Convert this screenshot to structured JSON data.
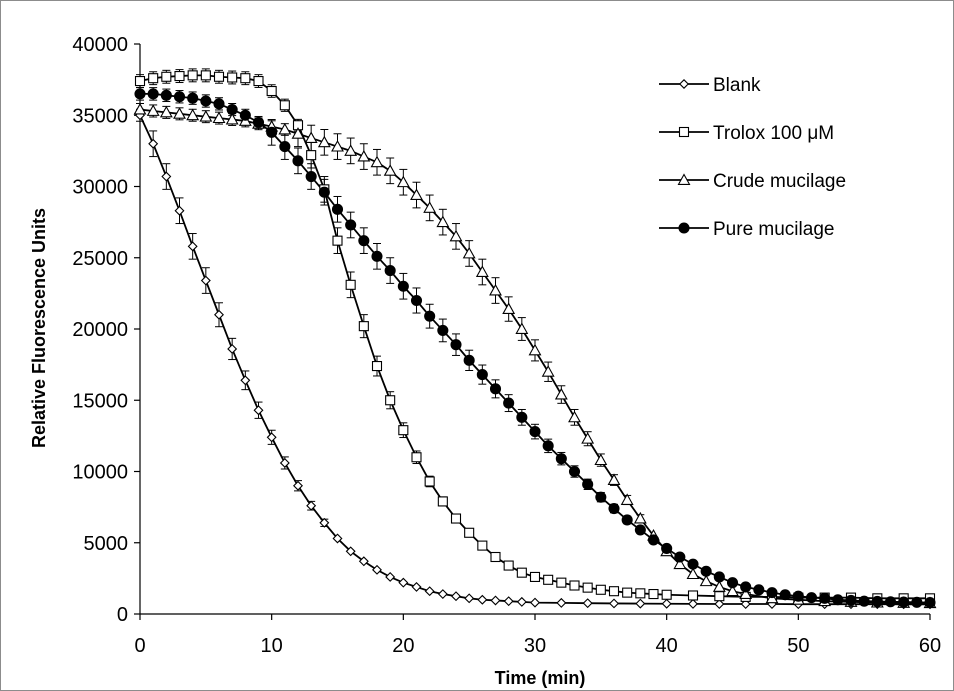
{
  "chart_data": {
    "type": "line",
    "title": "",
    "xlabel": "Time (min)",
    "ylabel": "Relative Fluorescence Units",
    "xlim": [
      0,
      60
    ],
    "ylim": [
      0,
      40000
    ],
    "xticks": [
      0,
      10,
      20,
      30,
      40,
      50,
      60
    ],
    "yticks": [
      0,
      5000,
      10000,
      15000,
      20000,
      25000,
      30000,
      35000,
      40000
    ],
    "grid": false,
    "legend_position": "top-right",
    "error_bars": true,
    "series": [
      {
        "name": "Blank",
        "marker": "diamond-open",
        "color": "#000000",
        "points": [
          [
            0,
            35000
          ],
          [
            1,
            33000
          ],
          [
            2,
            30700
          ],
          [
            3,
            28300
          ],
          [
            4,
            25800
          ],
          [
            5,
            23400
          ],
          [
            6,
            21000
          ],
          [
            7,
            18600
          ],
          [
            8,
            16400
          ],
          [
            9,
            14300
          ],
          [
            10,
            12400
          ],
          [
            11,
            10600
          ],
          [
            12,
            9000
          ],
          [
            13,
            7600
          ],
          [
            14,
            6400
          ],
          [
            15,
            5300
          ],
          [
            16,
            4400
          ],
          [
            17,
            3700
          ],
          [
            18,
            3100
          ],
          [
            19,
            2600
          ],
          [
            20,
            2200
          ],
          [
            21,
            1900
          ],
          [
            22,
            1600
          ],
          [
            23,
            1400
          ],
          [
            24,
            1250
          ],
          [
            25,
            1100
          ],
          [
            26,
            1000
          ],
          [
            27,
            950
          ],
          [
            28,
            900
          ],
          [
            29,
            850
          ],
          [
            30,
            800
          ],
          [
            32,
            780
          ],
          [
            34,
            760
          ],
          [
            36,
            740
          ],
          [
            38,
            730
          ],
          [
            40,
            720
          ],
          [
            42,
            710
          ],
          [
            44,
            700
          ],
          [
            46,
            700
          ],
          [
            48,
            700
          ],
          [
            50,
            690
          ],
          [
            52,
            690
          ],
          [
            54,
            690
          ],
          [
            56,
            690
          ],
          [
            58,
            680
          ],
          [
            60,
            680
          ]
        ]
      },
      {
        "name": "Trolox 100 μM",
        "marker": "square-open",
        "color": "#000000",
        "points": [
          [
            0,
            37400
          ],
          [
            1,
            37600
          ],
          [
            2,
            37700
          ],
          [
            3,
            37750
          ],
          [
            4,
            37800
          ],
          [
            5,
            37800
          ],
          [
            6,
            37700
          ],
          [
            7,
            37650
          ],
          [
            8,
            37600
          ],
          [
            9,
            37400
          ],
          [
            10,
            36700
          ],
          [
            11,
            35700
          ],
          [
            12,
            34300
          ],
          [
            13,
            32200
          ],
          [
            14,
            29800
          ],
          [
            15,
            26200
          ],
          [
            16,
            23100
          ],
          [
            17,
            20200
          ],
          [
            18,
            17400
          ],
          [
            19,
            15000
          ],
          [
            20,
            12900
          ],
          [
            21,
            11000
          ],
          [
            22,
            9300
          ],
          [
            23,
            7900
          ],
          [
            24,
            6700
          ],
          [
            25,
            5700
          ],
          [
            26,
            4800
          ],
          [
            27,
            4000
          ],
          [
            28,
            3400
          ],
          [
            29,
            2900
          ],
          [
            30,
            2600
          ],
          [
            31,
            2400
          ],
          [
            32,
            2200
          ],
          [
            33,
            2000
          ],
          [
            34,
            1850
          ],
          [
            35,
            1700
          ],
          [
            36,
            1600
          ],
          [
            37,
            1500
          ],
          [
            38,
            1450
          ],
          [
            39,
            1400
          ],
          [
            40,
            1350
          ],
          [
            42,
            1300
          ],
          [
            44,
            1250
          ],
          [
            46,
            1200
          ],
          [
            48,
            1200
          ],
          [
            50,
            1150
          ],
          [
            52,
            1150
          ],
          [
            54,
            1150
          ],
          [
            56,
            1100
          ],
          [
            58,
            1100
          ],
          [
            60,
            1100
          ]
        ]
      },
      {
        "name": "Crude mucilage",
        "marker": "triangle-open",
        "color": "#000000",
        "points": [
          [
            0,
            35400
          ],
          [
            1,
            35300
          ],
          [
            2,
            35200
          ],
          [
            3,
            35100
          ],
          [
            4,
            35000
          ],
          [
            5,
            34900
          ],
          [
            6,
            34800
          ],
          [
            7,
            34700
          ],
          [
            8,
            34600
          ],
          [
            9,
            34400
          ],
          [
            10,
            34200
          ],
          [
            11,
            34000
          ],
          [
            12,
            33700
          ],
          [
            13,
            33400
          ],
          [
            14,
            33100
          ],
          [
            15,
            32800
          ],
          [
            16,
            32500
          ],
          [
            17,
            32100
          ],
          [
            18,
            31700
          ],
          [
            19,
            31100
          ],
          [
            20,
            30300
          ],
          [
            21,
            29400
          ],
          [
            22,
            28500
          ],
          [
            23,
            27500
          ],
          [
            24,
            26500
          ],
          [
            25,
            25300
          ],
          [
            26,
            24000
          ],
          [
            27,
            22700
          ],
          [
            28,
            21400
          ],
          [
            29,
            20000
          ],
          [
            30,
            18500
          ],
          [
            31,
            17000
          ],
          [
            32,
            15400
          ],
          [
            33,
            13800
          ],
          [
            34,
            12300
          ],
          [
            35,
            10800
          ],
          [
            36,
            9400
          ],
          [
            37,
            8000
          ],
          [
            38,
            6700
          ],
          [
            39,
            5500
          ],
          [
            40,
            4400
          ],
          [
            41,
            3500
          ],
          [
            42,
            2800
          ],
          [
            43,
            2300
          ],
          [
            44,
            1900
          ],
          [
            45,
            1600
          ],
          [
            46,
            1400
          ],
          [
            48,
            1100
          ],
          [
            50,
            1000
          ],
          [
            52,
            900
          ],
          [
            54,
            850
          ],
          [
            56,
            800
          ],
          [
            58,
            780
          ],
          [
            60,
            760
          ]
        ]
      },
      {
        "name": "Pure mucilage",
        "marker": "circle-filled",
        "color": "#000000",
        "points": [
          [
            0,
            36500
          ],
          [
            1,
            36500
          ],
          [
            2,
            36400
          ],
          [
            3,
            36300
          ],
          [
            4,
            36200
          ],
          [
            5,
            36000
          ],
          [
            6,
            35800
          ],
          [
            7,
            35400
          ],
          [
            8,
            35000
          ],
          [
            9,
            34500
          ],
          [
            10,
            33800
          ],
          [
            11,
            32800
          ],
          [
            12,
            31800
          ],
          [
            13,
            30700
          ],
          [
            14,
            29600
          ],
          [
            15,
            28400
          ],
          [
            16,
            27300
          ],
          [
            17,
            26200
          ],
          [
            18,
            25100
          ],
          [
            19,
            24100
          ],
          [
            20,
            23000
          ],
          [
            21,
            22000
          ],
          [
            22,
            20900
          ],
          [
            23,
            19900
          ],
          [
            24,
            18900
          ],
          [
            25,
            17800
          ],
          [
            26,
            16800
          ],
          [
            27,
            15800
          ],
          [
            28,
            14800
          ],
          [
            29,
            13800
          ],
          [
            30,
            12800
          ],
          [
            31,
            11800
          ],
          [
            32,
            10900
          ],
          [
            33,
            10000
          ],
          [
            34,
            9100
          ],
          [
            35,
            8200
          ],
          [
            36,
            7400
          ],
          [
            37,
            6600
          ],
          [
            38,
            5900
          ],
          [
            39,
            5200
          ],
          [
            40,
            4600
          ],
          [
            41,
            4000
          ],
          [
            42,
            3500
          ],
          [
            43,
            3000
          ],
          [
            44,
            2600
          ],
          [
            45,
            2200
          ],
          [
            46,
            1900
          ],
          [
            47,
            1700
          ],
          [
            48,
            1500
          ],
          [
            49,
            1350
          ],
          [
            50,
            1250
          ],
          [
            51,
            1150
          ],
          [
            52,
            1100
          ],
          [
            53,
            1000
          ],
          [
            54,
            950
          ],
          [
            55,
            900
          ],
          [
            56,
            880
          ],
          [
            57,
            860
          ],
          [
            58,
            840
          ],
          [
            59,
            820
          ],
          [
            60,
            800
          ]
        ]
      }
    ]
  }
}
